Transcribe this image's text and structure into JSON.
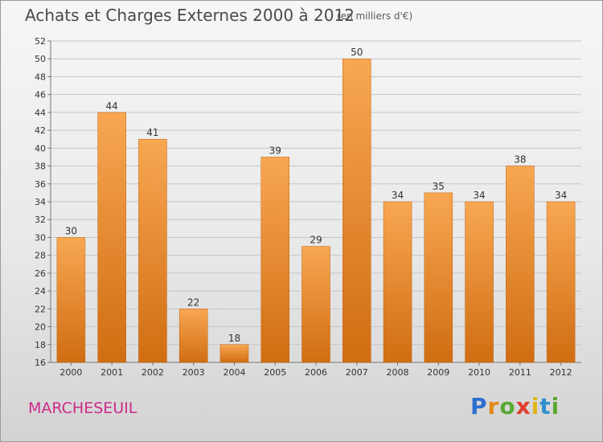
{
  "chart_data": {
    "type": "bar",
    "title": "Achats et Charges Externes 2000 à 2012",
    "subtitle": "(en milliers d'€)",
    "categories": [
      "2000",
      "2001",
      "2002",
      "2003",
      "2004",
      "2005",
      "2006",
      "2007",
      "2008",
      "2009",
      "2010",
      "2011",
      "2012"
    ],
    "values": [
      30,
      44,
      41,
      22,
      18,
      39,
      29,
      50,
      34,
      35,
      34,
      38,
      34
    ],
    "ylim": [
      16,
      52
    ],
    "yticks": [
      16,
      18,
      20,
      22,
      24,
      26,
      28,
      30,
      32,
      34,
      36,
      38,
      40,
      42,
      44,
      46,
      48,
      50,
      52
    ],
    "grid": true,
    "bar_color": "#f0902e"
  },
  "commune": "MARCHESEUIL",
  "logo": {
    "text": "Proxiti",
    "letters": [
      "P",
      "r",
      "o",
      "x",
      "i",
      "t",
      "i"
    ],
    "colors": [
      "#2e6fcf",
      "#e0891a",
      "#5aa832",
      "#e03c2c",
      "#e0b41a",
      "#2e8fcf",
      "#5aa832"
    ]
  }
}
